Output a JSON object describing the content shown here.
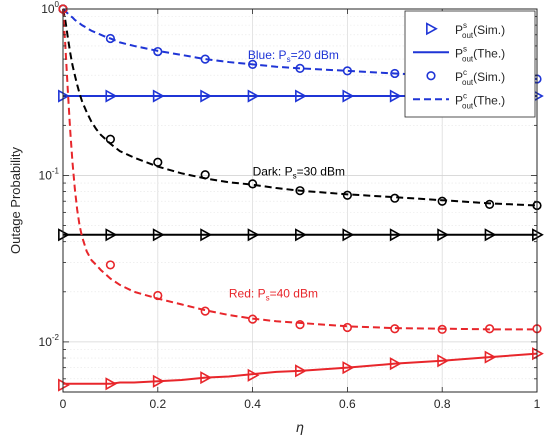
{
  "chart_data": {
    "type": "line",
    "xlabel": "η",
    "ylabel": "Outage Probability",
    "xlim": [
      0,
      1
    ],
    "ylim": [
      0.005,
      1
    ],
    "yscale": "log",
    "grid": true,
    "x_ticks": [
      "0",
      "0.2",
      "0.4",
      "0.6",
      "0.8",
      "1"
    ],
    "y_ticks": [
      {
        "base": "10",
        "exp": "0"
      },
      {
        "base": "10",
        "exp": "-1"
      },
      {
        "base": "10",
        "exp": "-2"
      }
    ],
    "legend": {
      "position": "top-right",
      "entries": [
        {
          "marker": "triangle-right",
          "line": "none",
          "base": "P",
          "sup": "s",
          "sub": "out",
          "suffix": "(Sim.)"
        },
        {
          "marker": "none",
          "line": "solid",
          "base": "P",
          "sup": "s",
          "sub": "out",
          "suffix": "(The.)"
        },
        {
          "marker": "circle",
          "line": "none",
          "base": "P",
          "sup": "c",
          "sub": "out",
          "suffix": "(Sim.)"
        },
        {
          "marker": "none",
          "line": "dashed",
          "base": "P",
          "sup": "c",
          "sub": "out",
          "suffix": "(The.)"
        }
      ]
    },
    "annotations": [
      {
        "prefix": "Blue: P",
        "sub": "s",
        "suffix": "=20 dBm",
        "color": "#1f35d6",
        "x": 0.39,
        "y": 0.5
      },
      {
        "prefix": "Dark: P",
        "sub": "s",
        "suffix": "=30 dBm",
        "color": "#000000",
        "x": 0.4,
        "y": 0.1
      },
      {
        "prefix": "Red: P",
        "sub": "s",
        "suffix": "=40 dBm",
        "color": "#e8262b",
        "x": 0.35,
        "y": 0.0185
      }
    ],
    "x_theory": [
      0,
      0.005,
      0.01,
      0.015,
      0.02,
      0.025,
      0.03,
      0.035,
      0.04,
      0.05,
      0.06,
      0.07,
      0.08,
      0.09,
      0.1,
      0.12,
      0.15,
      0.2,
      0.25,
      0.3,
      0.35,
      0.4,
      0.45,
      0.5,
      0.6,
      0.7,
      0.8,
      0.9,
      1.0
    ],
    "x_sim": [
      0,
      0.1,
      0.2,
      0.3,
      0.4,
      0.5,
      0.6,
      0.7,
      0.8,
      0.9,
      1.0
    ],
    "groups": [
      {
        "color": "#1f35d6",
        "secrecy_theory": [
          0.3,
          0.3,
          0.3,
          0.3,
          0.3,
          0.3,
          0.3,
          0.3,
          0.3,
          0.3,
          0.3,
          0.3,
          0.3,
          0.3,
          0.3,
          0.3,
          0.3,
          0.3,
          0.3,
          0.3,
          0.3,
          0.3,
          0.3,
          0.3,
          0.3,
          0.3,
          0.3,
          0.3,
          0.3
        ],
        "secrecy_sim": [
          0.3,
          0.3,
          0.3,
          0.3,
          0.3,
          0.3,
          0.3,
          0.3,
          0.3,
          0.3,
          0.3
        ],
        "connection_theory": [
          1.0,
          0.97,
          0.94,
          0.91,
          0.89,
          0.86,
          0.84,
          0.82,
          0.8,
          0.77,
          0.74,
          0.72,
          0.7,
          0.68,
          0.665,
          0.63,
          0.6,
          0.56,
          0.53,
          0.5,
          0.48,
          0.465,
          0.45,
          0.44,
          0.425,
          0.41,
          0.395,
          0.385,
          0.38
        ],
        "connection_sim": [
          1.0,
          0.665,
          0.555,
          0.5,
          0.465,
          0.44,
          0.425,
          0.41,
          0.395,
          0.385,
          0.38
        ]
      },
      {
        "color": "#000000",
        "secrecy_theory": [
          0.044,
          0.044,
          0.044,
          0.044,
          0.044,
          0.044,
          0.044,
          0.044,
          0.044,
          0.044,
          0.044,
          0.044,
          0.044,
          0.044,
          0.044,
          0.044,
          0.044,
          0.044,
          0.044,
          0.044,
          0.044,
          0.044,
          0.044,
          0.044,
          0.044,
          0.044,
          0.044,
          0.044,
          0.044
        ],
        "secrecy_sim": [
          0.044,
          0.044,
          0.044,
          0.044,
          0.044,
          0.044,
          0.044,
          0.044,
          0.044,
          0.044,
          0.044
        ],
        "connection_theory": [
          1.0,
          0.85,
          0.68,
          0.55,
          0.46,
          0.4,
          0.35,
          0.31,
          0.28,
          0.24,
          0.21,
          0.19,
          0.175,
          0.165,
          0.155,
          0.14,
          0.128,
          0.113,
          0.103,
          0.096,
          0.091,
          0.088,
          0.084,
          0.081,
          0.077,
          0.074,
          0.071,
          0.068,
          0.066
        ],
        "connection_sim": [
          1.0,
          0.165,
          0.12,
          0.101,
          0.089,
          0.081,
          0.076,
          0.073,
          0.07,
          0.067,
          0.066
        ]
      },
      {
        "color": "#e8262b",
        "secrecy_theory": [
          0.0056,
          0.0056,
          0.0056,
          0.0056,
          0.0056,
          0.0056,
          0.0056,
          0.0056,
          0.0056,
          0.0056,
          0.0056,
          0.0056,
          0.0056,
          0.0056,
          0.0056,
          0.0057,
          0.0057,
          0.0058,
          0.0059,
          0.0061,
          0.0062,
          0.0064,
          0.0066,
          0.0067,
          0.007,
          0.0074,
          0.0077,
          0.0081,
          0.0085
        ],
        "secrecy_sim": [
          0.0055,
          0.0056,
          0.0058,
          0.0061,
          0.0063,
          0.0067,
          0.007,
          0.0074,
          0.0077,
          0.0081,
          0.0085
        ],
        "connection_theory": [
          1.0,
          0.6,
          0.33,
          0.19,
          0.12,
          0.083,
          0.062,
          0.05,
          0.043,
          0.035,
          0.031,
          0.029,
          0.027,
          0.0255,
          0.024,
          0.022,
          0.02,
          0.0182,
          0.0168,
          0.0155,
          0.0145,
          0.0138,
          0.0133,
          0.013,
          0.0124,
          0.0121,
          0.012,
          0.0119,
          0.0119
        ],
        "connection_sim": [
          1.0,
          0.029,
          0.019,
          0.0153,
          0.0137,
          0.0127,
          0.0122,
          0.012,
          0.0119,
          0.012,
          0.012
        ]
      }
    ]
  }
}
